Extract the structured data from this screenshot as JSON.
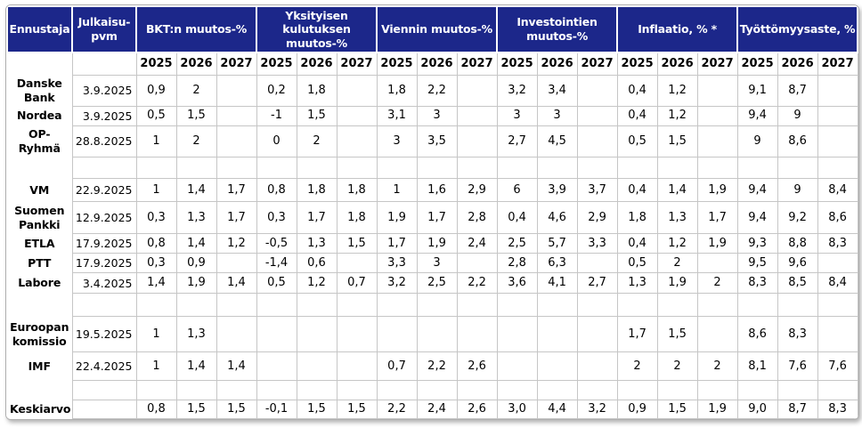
{
  "colors": {
    "header_bg": "#1c278a",
    "header_text": "#ffffff",
    "grid_line": "#c6c6c6",
    "body_text": "#000000",
    "frame_border": "#b0b0b0"
  },
  "chart_data": {
    "type": "table",
    "corner_header": "Ennustaja",
    "date_header": "Julkaisu-pvm",
    "column_groups": [
      {
        "label": "BKT:n muutos-%",
        "years": [
          "2025",
          "2026",
          "2027"
        ]
      },
      {
        "label": "Yksityisen kulutuksen muutos-%",
        "years": [
          "2025",
          "2026",
          "2027"
        ]
      },
      {
        "label": "Viennin muutos-%",
        "years": [
          "2025",
          "2026",
          "2027"
        ]
      },
      {
        "label": "Investointien muutos-%",
        "years": [
          "2025",
          "2026",
          "2027"
        ]
      },
      {
        "label": "Inflaatio, % *",
        "years": [
          "2025",
          "2026",
          "2027"
        ]
      },
      {
        "label": "Työttömyysaste, %",
        "years": [
          "2025",
          "2026",
          "2027"
        ]
      }
    ],
    "rows": [
      {
        "label": "Danske Bank",
        "date": "3.9.2025",
        "values": [
          "0,9",
          "2",
          "",
          "0,2",
          "1,8",
          "",
          "1,8",
          "2,2",
          "",
          "3,2",
          "3,4",
          "",
          "0,4",
          "1,2",
          "",
          "9,1",
          "8,7",
          ""
        ]
      },
      {
        "label": "Nordea",
        "date": "3.9.2025",
        "values": [
          "0,5",
          "1,5",
          "",
          "-1",
          "1,5",
          "",
          "3,1",
          "3",
          "",
          "3",
          "3",
          "",
          "0,4",
          "1,2",
          "",
          "9,4",
          "9",
          ""
        ]
      },
      {
        "label": "OP-Ryhmä",
        "date": "28.8.2025",
        "values": [
          "1",
          "2",
          "",
          "0",
          "2",
          "",
          "3",
          "3,5",
          "",
          "2,7",
          "4,5",
          "",
          "0,5",
          "1,5",
          "",
          "9",
          "8,6",
          ""
        ]
      },
      {
        "label": "",
        "date": "",
        "spacer": true,
        "values": [
          "",
          "",
          "",
          "",
          "",
          "",
          "",
          "",
          "",
          "",
          "",
          "",
          "",
          "",
          "",
          "",
          "",
          ""
        ]
      },
      {
        "label": "VM",
        "date": "22.9.2025",
        "values": [
          "1",
          "1,4",
          "1,7",
          "0,8",
          "1,8",
          "1,8",
          "1",
          "1,6",
          "2,9",
          "6",
          "3,9",
          "3,7",
          "0,4",
          "1,4",
          "1,9",
          "9,4",
          "9",
          "8,4"
        ]
      },
      {
        "label": "Suomen Pankki",
        "date": "12.9.2025",
        "values": [
          "0,3",
          "1,3",
          "1,7",
          "0,3",
          "1,7",
          "1,8",
          "1,9",
          "1,7",
          "2,8",
          "0,4",
          "4,6",
          "2,9",
          "1,8",
          "1,3",
          "1,7",
          "9,4",
          "9,2",
          "8,6"
        ]
      },
      {
        "label": "ETLA",
        "date": "17.9.2025",
        "values": [
          "0,8",
          "1,4",
          "1,2",
          "-0,5",
          "1,3",
          "1,5",
          "1,7",
          "1,9",
          "2,4",
          "2,5",
          "5,7",
          "3,3",
          "0,4",
          "1,2",
          "1,9",
          "9,3",
          "8,8",
          "8,3"
        ]
      },
      {
        "label": "PTT",
        "date": "17.9.2025",
        "values": [
          "0,3",
          "0,9",
          "",
          "-1,4",
          "0,6",
          "",
          "3,3",
          "3",
          "",
          "2,8",
          "6,3",
          "",
          "0,5",
          "2",
          "",
          "9,5",
          "9,6",
          ""
        ]
      },
      {
        "label": "Labore",
        "date": "3.4.2025",
        "values": [
          "1,4",
          "1,9",
          "1,4",
          "0,5",
          "1,2",
          "0,7",
          "3,2",
          "2,5",
          "2,2",
          "3,6",
          "4,1",
          "2,7",
          "1,3",
          "1,9",
          "2",
          "8,3",
          "8,5",
          "8,4"
        ]
      },
      {
        "label": "",
        "date": "",
        "spacer": true,
        "values": [
          "",
          "",
          "",
          "",
          "",
          "",
          "",
          "",
          "",
          "",
          "",
          "",
          "",
          "",
          "",
          "",
          "",
          ""
        ]
      },
      {
        "label": "Euroopan komissio",
        "date": "19.5.2025",
        "values": [
          "1",
          "1,3",
          "",
          "",
          "",
          "",
          "",
          "",
          "",
          "",
          "",
          "",
          "1,7",
          "1,5",
          "",
          "8,6",
          "8,3",
          ""
        ]
      },
      {
        "label": "IMF",
        "date": "22.4.2025",
        "values": [
          "1",
          "1,4",
          "1,4",
          "",
          "",
          "",
          "0,7",
          "2,2",
          "2,6",
          "",
          "",
          "",
          "2",
          "2",
          "2",
          "8,1",
          "7,6",
          "7,6"
        ]
      },
      {
        "label": "",
        "date": "",
        "spacer": true,
        "values": [
          "",
          "",
          "",
          "",
          "",
          "",
          "",
          "",
          "",
          "",
          "",
          "",
          "",
          "",
          "",
          "",
          "",
          ""
        ]
      },
      {
        "label": "Keskiarvo",
        "date": "",
        "values": [
          "0,8",
          "1,5",
          "1,5",
          "-0,1",
          "1,5",
          "1,5",
          "2,2",
          "2,4",
          "2,6",
          "3,0",
          "4,4",
          "3,2",
          "0,9",
          "1,5",
          "1,9",
          "9,0",
          "8,7",
          "8,3"
        ]
      }
    ]
  }
}
